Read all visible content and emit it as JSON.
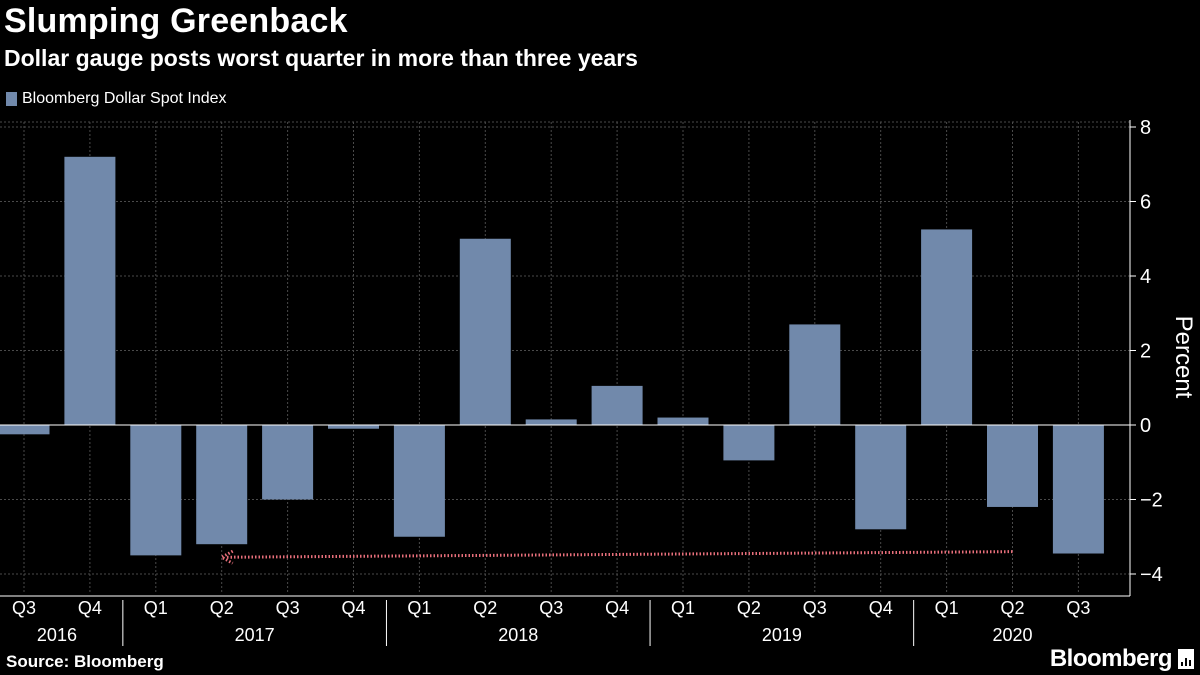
{
  "header": {
    "title": "Slumping Greenback",
    "subtitle": "Dollar gauge posts worst quarter in more than three years"
  },
  "legend": {
    "label": "Bloomberg Dollar Spot Index"
  },
  "footer": {
    "source": "Source: Bloomberg",
    "brand": "Bloomberg"
  },
  "colors": {
    "background": "#000000",
    "bar": "#7189ab",
    "grid": "#4a4a4a",
    "axis": "#ffffff",
    "arrow": "#e86f7b"
  },
  "chart_data": {
    "type": "bar",
    "title": "Slumping Greenback",
    "subtitle": "Dollar gauge posts worst quarter in more than three years",
    "ylabel": "Percent",
    "xlabel": "",
    "ylim": [
      -4,
      8
    ],
    "yticks": [
      -4,
      -2,
      0,
      2,
      4,
      6,
      8
    ],
    "y_axis_side": "right",
    "grid": true,
    "legend_position": "top-left",
    "categories": [
      "Q3",
      "Q4",
      "Q1",
      "Q2",
      "Q3",
      "Q4",
      "Q1",
      "Q2",
      "Q3",
      "Q4",
      "Q1",
      "Q2",
      "Q3",
      "Q4",
      "Q1",
      "Q2",
      "Q3"
    ],
    "year_labels": [
      {
        "label": "2016",
        "start_index": 0,
        "end_index": 1
      },
      {
        "label": "2017",
        "start_index": 2,
        "end_index": 5
      },
      {
        "label": "2018",
        "start_index": 6,
        "end_index": 9
      },
      {
        "label": "2019",
        "start_index": 10,
        "end_index": 13
      },
      {
        "label": "2020",
        "start_index": 14,
        "end_index": 16
      }
    ],
    "series": [
      {
        "name": "Bloomberg Dollar Spot Index",
        "values": [
          -0.25,
          7.2,
          -3.5,
          -3.2,
          -2.0,
          -0.1,
          -3.0,
          5.0,
          0.15,
          1.05,
          0.2,
          -0.95,
          2.7,
          -2.8,
          5.25,
          -2.2,
          -3.45
        ]
      }
    ],
    "annotations": [
      {
        "type": "dotted-arrow",
        "from": {
          "category_index": 15,
          "value": -3.4
        },
        "to": {
          "category_index": 3,
          "value": -3.55
        }
      }
    ]
  }
}
